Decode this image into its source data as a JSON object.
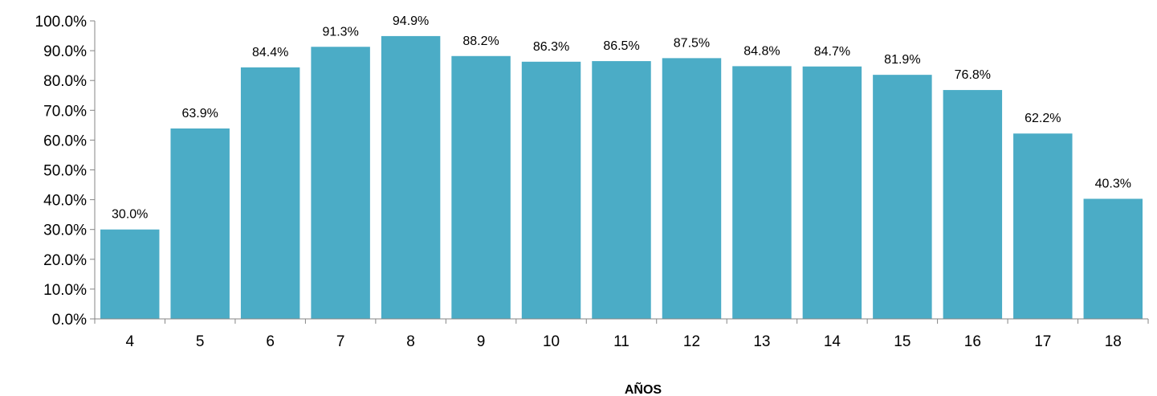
{
  "chart_data": {
    "type": "bar",
    "title": "",
    "xlabel": "AÑOS",
    "ylabel": "",
    "categories": [
      "4",
      "5",
      "6",
      "7",
      "8",
      "9",
      "10",
      "11",
      "12",
      "13",
      "14",
      "15",
      "16",
      "17",
      "18"
    ],
    "values": [
      30.0,
      63.9,
      84.4,
      91.3,
      94.9,
      88.2,
      86.3,
      86.5,
      87.5,
      84.8,
      84.7,
      81.9,
      76.8,
      62.2,
      40.3
    ],
    "data_labels": [
      "30.0%",
      "63.9%",
      "84.4%",
      "91.3%",
      "94.9%",
      "88.2%",
      "86.3%",
      "86.5%",
      "87.5%",
      "84.8%",
      "84.7%",
      "81.9%",
      "76.8%",
      "62.2%",
      "40.3%"
    ],
    "y_ticks": [
      0,
      10,
      20,
      30,
      40,
      50,
      60,
      70,
      80,
      90,
      100
    ],
    "y_tick_labels": [
      "0.0%",
      "10.0%",
      "20.0%",
      "30.0%",
      "40.0%",
      "50.0%",
      "60.0%",
      "70.0%",
      "80.0%",
      "90.0%",
      "100.0%"
    ],
    "ylim": [
      0,
      100
    ],
    "grid": false,
    "legend": "none",
    "bar_color": "#4BACC6",
    "axis_color": "#868686"
  }
}
